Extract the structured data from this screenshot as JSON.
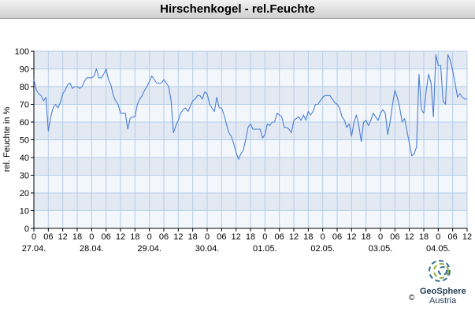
{
  "header": {
    "title": "Hirschenkogel - rel.Feuchte"
  },
  "chart_data": {
    "type": "line",
    "title": "Hirschenkogel - rel.Feuchte",
    "ylabel": "rel. Feuchte in %",
    "xlabel": "",
    "ylim": [
      0,
      100
    ],
    "yticks": [
      0,
      10,
      20,
      30,
      40,
      50,
      60,
      70,
      80,
      90,
      100
    ],
    "hour_ticks": [
      "0",
      "06",
      "12",
      "18",
      "0",
      "06",
      "12",
      "18",
      "0",
      "06",
      "12",
      "18",
      "0",
      "06",
      "12",
      "18",
      "0",
      "06",
      "12",
      "18",
      "0",
      "06",
      "12",
      "18",
      "0",
      "06",
      "12",
      "18",
      "0",
      "06",
      "12"
    ],
    "date_labels": [
      "27.04.",
      "28.04.",
      "29.04.",
      "30.04.",
      "01.05.",
      "02.05.",
      "03.05.",
      "04.05."
    ],
    "grid": true,
    "line_color": "#4a7fd6",
    "series": [
      {
        "points": [
          [
            0,
            84
          ],
          [
            1,
            78
          ],
          [
            2,
            76
          ],
          [
            3,
            75
          ],
          [
            4,
            72
          ],
          [
            5,
            74
          ],
          [
            6,
            55
          ],
          [
            7,
            63
          ],
          [
            8,
            68
          ],
          [
            9,
            70
          ],
          [
            10,
            68
          ],
          [
            11,
            71
          ],
          [
            12,
            76
          ],
          [
            13,
            78
          ],
          [
            14,
            81
          ],
          [
            15,
            82
          ],
          [
            16,
            79
          ],
          [
            17,
            80
          ],
          [
            18,
            80
          ],
          [
            19,
            79
          ],
          [
            20,
            80
          ],
          [
            21,
            83
          ],
          [
            22,
            85
          ],
          [
            23,
            85
          ],
          [
            24,
            85
          ],
          [
            25,
            86
          ],
          [
            26,
            90
          ],
          [
            27,
            85
          ],
          [
            28,
            85
          ],
          [
            29,
            87
          ],
          [
            30,
            90
          ],
          [
            31,
            84
          ],
          [
            32,
            81
          ],
          [
            33,
            75
          ],
          [
            34,
            72
          ],
          [
            35,
            70
          ],
          [
            36,
            65
          ],
          [
            37,
            65
          ],
          [
            38,
            65
          ],
          [
            39,
            56
          ],
          [
            40,
            62
          ],
          [
            41,
            63
          ],
          [
            42,
            63
          ],
          [
            43,
            70
          ],
          [
            44,
            73
          ],
          [
            45,
            75
          ],
          [
            46,
            78
          ],
          [
            47,
            80
          ],
          [
            48,
            83
          ],
          [
            49,
            86
          ],
          [
            50,
            84
          ],
          [
            51,
            82
          ],
          [
            52,
            82
          ],
          [
            53,
            82
          ],
          [
            54,
            84
          ],
          [
            55,
            82
          ],
          [
            56,
            80
          ],
          [
            57,
            72
          ],
          [
            58,
            54
          ],
          [
            59,
            58
          ],
          [
            60,
            61
          ],
          [
            61,
            65
          ],
          [
            62,
            67
          ],
          [
            63,
            68
          ],
          [
            64,
            66
          ],
          [
            65,
            69
          ],
          [
            66,
            72
          ],
          [
            67,
            73
          ],
          [
            68,
            75
          ],
          [
            69,
            75
          ],
          [
            70,
            73
          ],
          [
            71,
            77
          ],
          [
            72,
            76
          ],
          [
            73,
            70
          ],
          [
            74,
            68
          ],
          [
            75,
            66
          ],
          [
            76,
            74
          ],
          [
            77,
            68
          ],
          [
            78,
            68
          ],
          [
            79,
            64
          ],
          [
            80,
            59
          ],
          [
            81,
            54
          ],
          [
            82,
            52
          ],
          [
            83,
            48
          ],
          [
            84,
            43
          ],
          [
            85,
            39
          ],
          [
            86,
            42
          ],
          [
            87,
            44
          ],
          [
            88,
            50
          ],
          [
            89,
            57
          ],
          [
            90,
            59
          ],
          [
            91,
            56
          ],
          [
            92,
            56
          ],
          [
            93,
            56
          ],
          [
            94,
            56
          ],
          [
            95,
            51
          ],
          [
            96,
            53
          ],
          [
            97,
            59
          ],
          [
            98,
            58
          ],
          [
            99,
            60
          ],
          [
            100,
            60
          ],
          [
            101,
            65
          ],
          [
            102,
            64
          ],
          [
            103,
            63
          ],
          [
            104,
            57
          ],
          [
            105,
            57
          ],
          [
            106,
            56
          ],
          [
            107,
            54
          ],
          [
            108,
            61
          ],
          [
            109,
            62
          ],
          [
            110,
            63
          ],
          [
            111,
            61
          ],
          [
            112,
            64
          ],
          [
            113,
            61
          ],
          [
            114,
            66
          ],
          [
            115,
            64
          ],
          [
            116,
            66
          ],
          [
            117,
            70
          ],
          [
            118,
            70
          ],
          [
            119,
            72
          ],
          [
            120,
            74
          ],
          [
            121,
            75
          ],
          [
            122,
            75
          ],
          [
            123,
            75
          ],
          [
            124,
            73
          ],
          [
            125,
            71
          ],
          [
            126,
            70
          ],
          [
            127,
            68
          ],
          [
            128,
            63
          ],
          [
            129,
            61
          ],
          [
            130,
            57
          ],
          [
            131,
            59
          ],
          [
            132,
            52
          ],
          [
            133,
            60
          ],
          [
            134,
            64
          ],
          [
            135,
            58
          ],
          [
            136,
            49
          ],
          [
            137,
            60
          ],
          [
            138,
            61
          ],
          [
            139,
            58
          ],
          [
            140,
            61
          ],
          [
            141,
            65
          ],
          [
            142,
            63
          ],
          [
            143,
            61
          ],
          [
            144,
            65
          ],
          [
            145,
            67
          ],
          [
            146,
            65
          ],
          [
            147,
            53
          ],
          [
            148,
            60
          ],
          [
            149,
            70
          ],
          [
            150,
            78
          ],
          [
            151,
            74
          ],
          [
            152,
            68
          ],
          [
            153,
            60
          ],
          [
            154,
            62
          ],
          [
            155,
            55
          ],
          [
            156,
            48
          ],
          [
            157,
            41
          ],
          [
            158,
            42
          ],
          [
            159,
            46
          ],
          [
            160,
            87
          ],
          [
            161,
            67
          ],
          [
            162,
            65
          ],
          [
            163,
            78
          ],
          [
            164,
            87
          ],
          [
            165,
            82
          ],
          [
            166,
            63
          ],
          [
            167,
            98
          ],
          [
            168,
            92
          ],
          [
            169,
            92
          ],
          [
            170,
            72
          ],
          [
            171,
            70
          ],
          [
            172,
            98
          ],
          [
            173,
            95
          ],
          [
            174,
            89
          ],
          [
            175,
            82
          ],
          [
            176,
            74
          ],
          [
            177,
            76
          ],
          [
            178,
            74
          ],
          [
            179,
            73
          ],
          [
            180,
            73
          ]
        ]
      }
    ]
  },
  "logo": {
    "name": "GeoSphere",
    "sub": "Austria",
    "copyright": "©"
  }
}
